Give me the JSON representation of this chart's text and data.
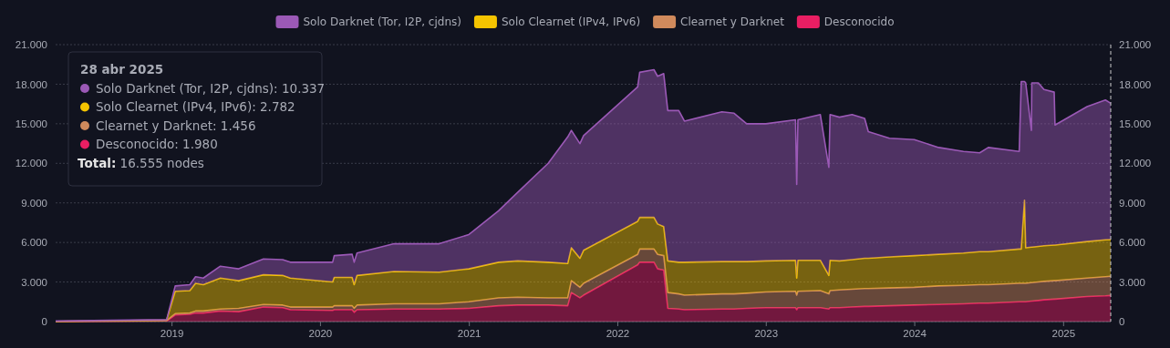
{
  "chart_data": {
    "type": "area",
    "stacked": true,
    "x": [
      "2018-03-22",
      "2018-12-20",
      "2019-01-10",
      "2019-02-15",
      "2019-03-01",
      "2019-03-20",
      "2019-05-01",
      "2019-06-15",
      "2019-08-15",
      "2019-10-01",
      "2019-10-20",
      "2020-02-01",
      "2020-02-05",
      "2020-03-20",
      "2020-03-25",
      "2020-04-01",
      "2020-07-01",
      "2020-10-20",
      "2021-01-01",
      "2021-03-15",
      "2021-05-01",
      "2021-07-15",
      "2021-09-01",
      "2021-09-10",
      "2021-10-01",
      "2021-10-10",
      "2022-02-20",
      "2022-02-25",
      "2022-04-01",
      "2022-04-10",
      "2022-04-25",
      "2022-05-05",
      "2022-06-01",
      "2022-06-15",
      "2022-09-15",
      "2022-10-15",
      "2022-11-15",
      "2023-01-01",
      "2023-03-15",
      "2023-03-18",
      "2023-03-21",
      "2023-05-15",
      "2023-06-05",
      "2023-06-08",
      "2023-07-01",
      "2023-08-01",
      "2023-09-01",
      "2023-09-10",
      "2023-11-01",
      "2024-01-01",
      "2024-03-01",
      "2024-05-01",
      "2024-06-10",
      "2024-07-01",
      "2024-09-15",
      "2024-09-20",
      "2024-09-28",
      "2024-10-01",
      "2024-10-15",
      "2024-10-16",
      "2024-11-01",
      "2024-11-15",
      "2024-12-10",
      "2024-12-12",
      "2025-03-01",
      "2025-04-15",
      "2025-04-28"
    ],
    "series": [
      {
        "name": "Desconocido",
        "color": "#e91e63",
        "values": [
          0,
          50,
          500,
          550,
          650,
          650,
          800,
          750,
          1100,
          1050,
          900,
          850,
          900,
          900,
          700,
          900,
          950,
          950,
          1000,
          1200,
          1250,
          1250,
          1200,
          2200,
          1800,
          2000,
          4300,
          4500,
          4500,
          4000,
          3900,
          1000,
          950,
          900,
          950,
          950,
          1000,
          1050,
          1050,
          900,
          1050,
          1050,
          950,
          1050,
          1050,
          1100,
          1150,
          1150,
          1200,
          1250,
          1300,
          1350,
          1400,
          1400,
          1500,
          1500,
          1500,
          1500,
          1550,
          1550,
          1600,
          1650,
          1700,
          1700,
          1900,
          1950,
          1980
        ]
      },
      {
        "name": "Clearnet y Darknet",
        "color": "#d08a5c",
        "values": [
          10,
          30,
          100,
          100,
          150,
          150,
          150,
          250,
          200,
          200,
          200,
          250,
          300,
          300,
          300,
          350,
          400,
          400,
          500,
          600,
          600,
          550,
          600,
          900,
          800,
          900,
          800,
          1000,
          1000,
          1100,
          1100,
          1200,
          1150,
          1100,
          1150,
          1150,
          1150,
          1200,
          1250,
          1100,
          1250,
          1300,
          1150,
          1300,
          1350,
          1350,
          1350,
          1350,
          1350,
          1350,
          1400,
          1400,
          1400,
          1400,
          1400,
          1400,
          1400,
          1400,
          1400,
          1400,
          1400,
          1400,
          1400,
          1400,
          1400,
          1450,
          1456
        ]
      },
      {
        "name": "Solo Clearnet (IPv4, IPv6)",
        "color": "#f5c400",
        "values": [
          10,
          40,
          1700,
          1700,
          2100,
          2000,
          2350,
          2100,
          2250,
          2250,
          2200,
          1900,
          2150,
          2150,
          1800,
          2250,
          2450,
          2400,
          2500,
          2700,
          2750,
          2700,
          2600,
          2500,
          2200,
          2500,
          2500,
          2400,
          2400,
          2300,
          2200,
          2400,
          2400,
          2500,
          2450,
          2450,
          2400,
          2350,
          2350,
          1300,
          2350,
          2300,
          1400,
          2300,
          2200,
          2250,
          2300,
          2300,
          2350,
          2400,
          2400,
          2450,
          2500,
          2500,
          2600,
          2600,
          6300,
          2700,
          2700,
          2700,
          2700,
          2700,
          2700,
          2700,
          2770,
          2800,
          2782
        ]
      },
      {
        "name": "Solo Darknet (Tor, I2P, cjdns)",
        "color": "#9b59b6",
        "values": [
          20,
          30,
          400,
          450,
          500,
          500,
          900,
          900,
          1200,
          1200,
          1200,
          1500,
          1650,
          1750,
          1700,
          1700,
          2100,
          2150,
          2600,
          3900,
          5200,
          7500,
          9600,
          8900,
          8700,
          8700,
          10200,
          11000,
          11200,
          11200,
          11600,
          11400,
          11500,
          10700,
          11350,
          11250,
          10450,
          10400,
          10650,
          7100,
          10650,
          11050,
          8200,
          11050,
          10900,
          11000,
          10600,
          9600,
          9000,
          8800,
          8100,
          7700,
          7500,
          7900,
          7400,
          12700,
          9000,
          12500,
          8850,
          12450,
          12400,
          11850,
          11600,
          9100,
          10230,
          10600,
          10337
        ]
      }
    ],
    "xlim": [
      "2018-03-22",
      "2025-04-28"
    ],
    "xticks": [
      "2019",
      "2020",
      "2021",
      "2022",
      "2023",
      "2024",
      "2025"
    ],
    "ylim": [
      0,
      21000
    ],
    "yticks": [
      {
        "value": 0,
        "label": "0"
      },
      {
        "value": 3000,
        "label": "3.000"
      },
      {
        "value": 6000,
        "label": "6.000"
      },
      {
        "value": 9000,
        "label": "9.000"
      },
      {
        "value": 12000,
        "label": "12.000"
      },
      {
        "value": 15000,
        "label": "15.000"
      },
      {
        "value": 18000,
        "label": "18.000"
      },
      {
        "value": 21000,
        "label": "21.000"
      }
    ],
    "y2lim": [
      0,
      21000
    ],
    "y2ticks": [
      {
        "value": 0,
        "label": "0"
      },
      {
        "value": 3000,
        "label": "3.000"
      },
      {
        "value": 6000,
        "label": "6.000"
      },
      {
        "value": 9000,
        "label": "9.000"
      },
      {
        "value": 12000,
        "label": "12.000"
      },
      {
        "value": 15000,
        "label": "15.000"
      },
      {
        "value": 18000,
        "label": "18.000"
      },
      {
        "value": 21000,
        "label": "21.000"
      }
    ],
    "grid": "y",
    "legend": "top",
    "ref_lines": [
      {
        "axis": "x",
        "value": "2025-04-28",
        "color": "#cccccc",
        "line_style": "dashed"
      }
    ],
    "annotations": [
      "28 abr 2025",
      "Solo Darknet (Tor, I2P, cjdns): 10.337",
      "Solo Clearnet (IPv4, IPv6): 2.782",
      "Clearnet y Darknet: 1.456",
      "Desconocido: 1.980",
      "Total: 16.555 nodes"
    ]
  }
}
